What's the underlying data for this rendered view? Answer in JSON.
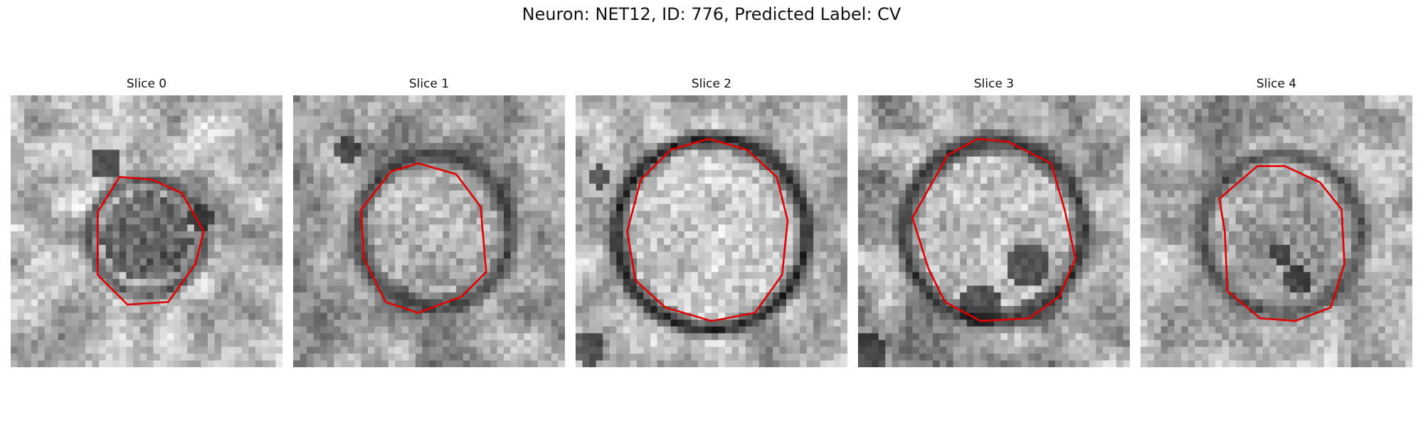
{
  "figure": {
    "title": "Neuron: NET12, ID: 776, Predicted Label: CV"
  },
  "panels": [
    {
      "label": "Slice 0"
    },
    {
      "label": "Slice 1"
    },
    {
      "label": "Slice 2"
    },
    {
      "label": "Slice 3"
    },
    {
      "label": "Slice 4"
    }
  ],
  "colors": {
    "contour": "#e00000",
    "colormap": "grayscale"
  }
}
